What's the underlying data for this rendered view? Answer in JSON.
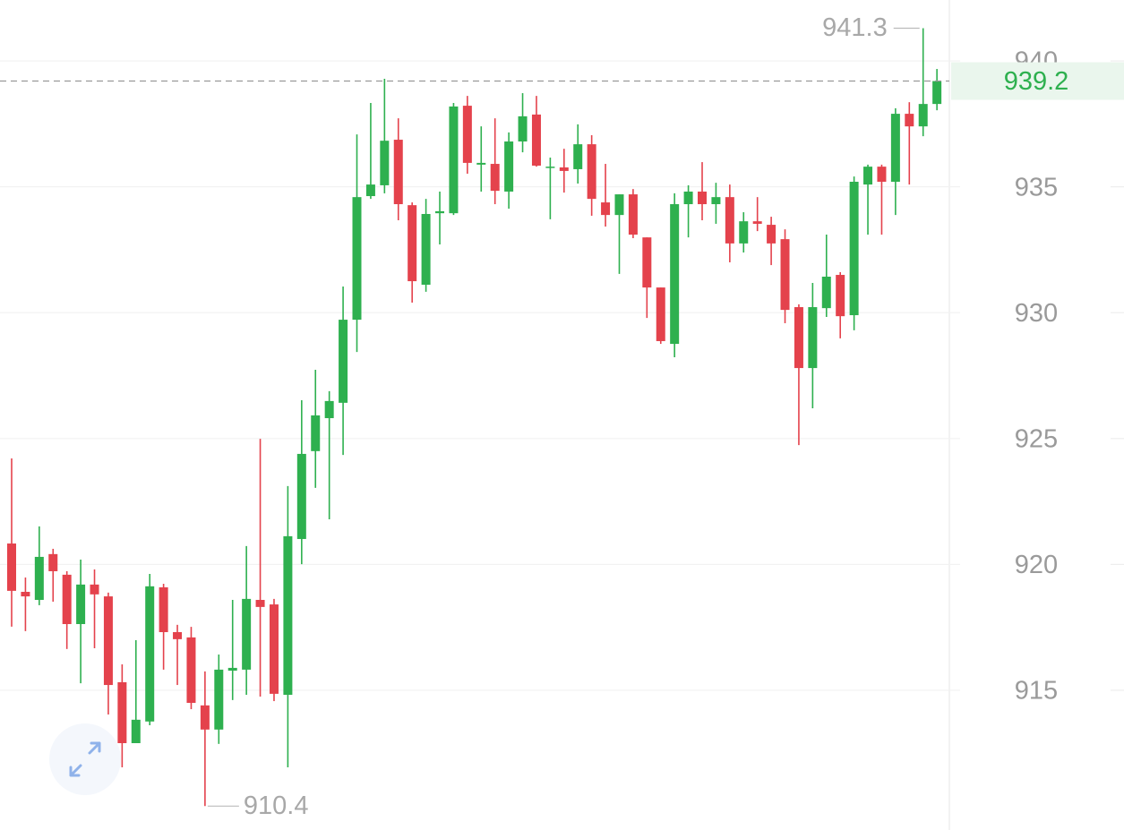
{
  "chart_data": {
    "type": "candlestick",
    "open": [
      920.83,
      918.91,
      918.59,
      920.41,
      919.59,
      917.63,
      919.2,
      918.73,
      915.32,
      912.9,
      913.76,
      919.09,
      917.31,
      917.1,
      914.4,
      913.44,
      915.78,
      915.82,
      918.59,
      918.41,
      914.82,
      921.01,
      924.5,
      925.81,
      926.42,
      929.72,
      934.63,
      935.06,
      936.87,
      934.27,
      931.11,
      933.95,
      933.95,
      938.22,
      935.88,
      935.91,
      934.81,
      936.8,
      937.87,
      935.77,
      935.77,
      935.7,
      936.69,
      934.38,
      933.88,
      934.7,
      932.99,
      931.0,
      928.76,
      934.31,
      934.81,
      934.31,
      934.59,
      932.75,
      933.63,
      933.49,
      932.92,
      930.22,
      927.8,
      930.18,
      931.5,
      929.9,
      935.09,
      935.8,
      935.2,
      937.9,
      937.4,
      938.29
    ],
    "high": [
      924.21,
      919.48,
      921.51,
      920.62,
      919.73,
      920.19,
      919.8,
      918.88,
      916.03,
      916.99,
      919.62,
      919.23,
      917.6,
      917.52,
      915.75,
      916.42,
      918.59,
      920.73,
      924.99,
      918.63,
      923.11,
      926.52,
      927.73,
      926.88,
      931.04,
      937.08,
      938.33,
      939.29,
      937.72,
      934.38,
      934.52,
      934.81,
      938.33,
      938.61,
      937.4,
      937.72,
      937.16,
      938.72,
      938.61,
      936.16,
      936.51,
      937.48,
      937.05,
      935.91,
      934.7,
      934.91,
      932.99,
      931.0,
      934.74,
      935.06,
      935.98,
      935.16,
      935.09,
      933.99,
      934.59,
      933.81,
      933.31,
      930.33,
      931.18,
      933.1,
      931.61,
      935.41,
      935.88,
      935.88,
      938.12,
      938.36,
      941.3,
      939.68
    ],
    "low": [
      917.53,
      917.35,
      918.38,
      918.52,
      916.64,
      915.28,
      916.67,
      914.04,
      911.94,
      912.9,
      913.61,
      915.82,
      915.21,
      914.25,
      910.4,
      912.87,
      914.61,
      914.82,
      914.75,
      914.57,
      911.94,
      920.01,
      923.04,
      921.79,
      924.35,
      928.44,
      934.52,
      934.74,
      933.67,
      930.4,
      930.83,
      932.71,
      933.88,
      935.52,
      934.81,
      934.31,
      934.13,
      936.37,
      935.8,
      933.71,
      934.77,
      935.13,
      933.85,
      933.42,
      931.54,
      932.96,
      929.79,
      928.76,
      928.23,
      932.99,
      933.67,
      933.53,
      932.0,
      932.39,
      933.24,
      931.89,
      929.58,
      924.74,
      926.2,
      929.83,
      928.98,
      929.3,
      933.1,
      933.1,
      933.88,
      935.09,
      937.01,
      938.04
    ],
    "close": [
      918.95,
      918.73,
      920.3,
      919.73,
      917.63,
      919.2,
      918.81,
      915.21,
      912.9,
      913.83,
      919.13,
      917.31,
      917.03,
      914.5,
      913.44,
      915.82,
      915.89,
      918.63,
      918.31,
      914.86,
      921.12,
      924.39,
      925.92,
      926.49,
      929.72,
      934.59,
      935.09,
      936.83,
      934.31,
      931.25,
      933.92,
      934.03,
      938.19,
      935.95,
      935.95,
      934.84,
      936.8,
      937.8,
      935.84,
      935.8,
      935.63,
      936.69,
      934.52,
      933.88,
      934.7,
      933.1,
      931.0,
      928.87,
      934.31,
      934.81,
      934.31,
      934.59,
      932.75,
      933.63,
      933.53,
      932.75,
      930.11,
      927.8,
      930.22,
      931.43,
      929.86,
      935.2,
      935.8,
      935.2,
      937.9,
      937.4,
      938.29,
      939.2
    ],
    "up_color": "#2eb04f",
    "down_color": "#e4424c",
    "ylim": [
      909.45,
      942.42
    ],
    "yticks": [
      915,
      920,
      925,
      930,
      935,
      940
    ],
    "grid": true,
    "last_price": 939.2,
    "max_label": 941.3,
    "min_label": 910.4
  }
}
